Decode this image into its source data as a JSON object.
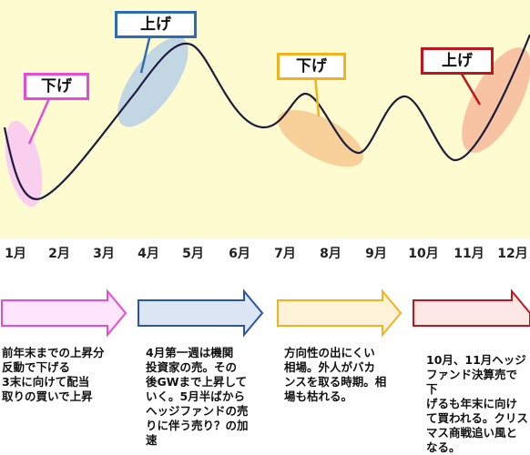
{
  "callouts": {
    "down1": {
      "label": "下げ",
      "color": "#e84ad8"
    },
    "up1": {
      "label": "上げ",
      "color": "#2a6db5"
    },
    "down2": {
      "label": "下げ",
      "color": "#f0b21e"
    },
    "up2": {
      "label": "上げ",
      "color": "#c0141e"
    }
  },
  "months": [
    "1月",
    "2月",
    "3月",
    "4月",
    "5月",
    "6月",
    "7月",
    "8月",
    "9月",
    "10月",
    "11月",
    "12月"
  ],
  "arrows": [
    {
      "color": "#e84ad8",
      "fill": "#fde6fb"
    },
    {
      "color": "#2a55a5",
      "fill": "#dce6f5"
    },
    {
      "color": "#f0b21e",
      "fill": "#fff2d8"
    },
    {
      "color": "#c0141e",
      "fill": "#fde8e6"
    }
  ],
  "descriptions": {
    "d1": "前年末までの上昇分\n反動で下げる\n3末に向けて配当\n取りの買いで上昇",
    "d2": "4月第一週は機関\n投資家の売。その\n後GWまで上昇して\nいく。5月半ばから\nヘッジファンドの売\nりに伴う売り？の加\n速",
    "d3": "方向性の出にくい\n相場。外人がバカ\nンスを取る時期。相\n場も枯れる。",
    "d4": "10月、11月ヘッジ\nファンド決算売で下\nげるも年末に向け\nて買われる。クリス\nマス商戦追い風と\nなる。"
  }
}
